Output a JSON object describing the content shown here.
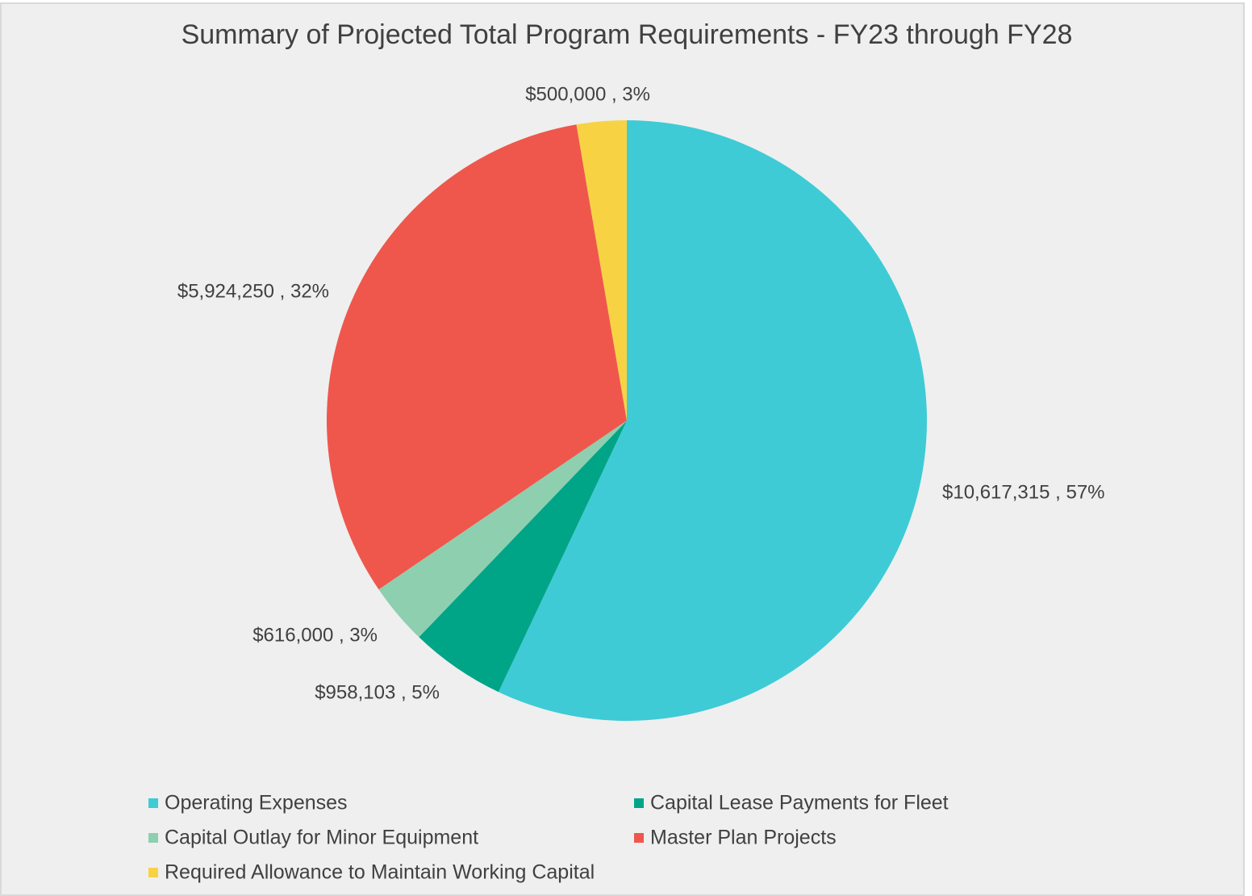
{
  "chart_data": {
    "type": "pie",
    "title": "Summary of Projected Total Program Requirements - FY23 through FY28",
    "categories": [
      "Operating Expenses",
      "Capital Lease Payments for Fleet",
      "Capital Outlay for Minor Equipment",
      "Master Plan Projects",
      "Required Allowance to Maintain Working Capital"
    ],
    "values": [
      10617315,
      958103,
      616000,
      5924250,
      500000
    ],
    "value_labels": [
      "$10,617,315 , 57%",
      "$958,103 , 5%",
      "$616,000 , 3%",
      "$5,924,250 , 32%",
      "$500,000 , 3%"
    ],
    "colors": [
      "#3ecbd6",
      "#00a587",
      "#8ecfb0",
      "#ef574c",
      "#f7d344"
    ],
    "legend": "bottom"
  }
}
